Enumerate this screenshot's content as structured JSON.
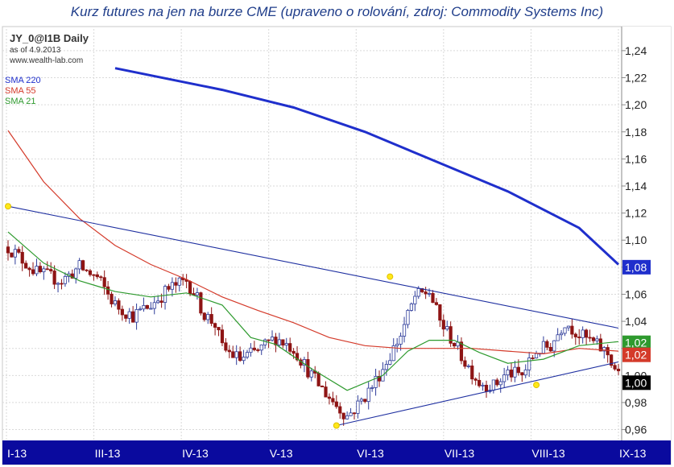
{
  "title": "Kurz futures na jen na burze CME (upraveno o rolování, zdroj: Commodity Systems Inc)",
  "header": {
    "symbol": "JY_0@I1B Daily",
    "as_of": "as of 4.9.2013",
    "website": "www.wealth-lab.com"
  },
  "chart_data": {
    "type": "candlestick",
    "title": "JY_0@I1B Daily",
    "y_ticks": [
      "1,24",
      "1,22",
      "1,20",
      "1,18",
      "1,16",
      "1,14",
      "1,12",
      "1,10",
      "1,08",
      "1,06",
      "1,04",
      "1,02",
      "1,00",
      "0,98",
      "0,96"
    ],
    "ylim": [
      0.952,
      1.256
    ],
    "x_ticks": [
      "I-13",
      "III-13",
      "IV-13",
      "V-13",
      "VI-13",
      "VII-13",
      "VIII-13",
      "IX-13"
    ],
    "n_bars": 172,
    "series": [
      {
        "name": "SMA 220",
        "color": "#1f2fcc",
        "last_value": "1,08",
        "points": [
          [
            30,
            1.227
          ],
          [
            60,
            1.211
          ],
          [
            80,
            1.198
          ],
          [
            100,
            1.18
          ],
          [
            120,
            1.158
          ],
          [
            140,
            1.136
          ],
          [
            160,
            1.109
          ],
          [
            171,
            1.082
          ]
        ]
      },
      {
        "name": "SMA 55",
        "color": "#d43a2a",
        "last_value": "1,02",
        "points": [
          [
            0,
            1.181
          ],
          [
            10,
            1.143
          ],
          [
            20,
            1.116
          ],
          [
            30,
            1.096
          ],
          [
            40,
            1.082
          ],
          [
            50,
            1.071
          ],
          [
            60,
            1.058
          ],
          [
            70,
            1.048
          ],
          [
            80,
            1.039
          ],
          [
            90,
            1.028
          ],
          [
            100,
            1.022
          ],
          [
            110,
            1.02
          ],
          [
            120,
            1.02
          ],
          [
            130,
            1.02
          ],
          [
            140,
            1.018
          ],
          [
            150,
            1.016
          ],
          [
            160,
            1.02
          ],
          [
            171,
            1.018
          ]
        ]
      },
      {
        "name": "SMA 21",
        "color": "#2e9a2e",
        "last_value": "1,02",
        "points": [
          [
            0,
            1.106
          ],
          [
            10,
            1.083
          ],
          [
            20,
            1.07
          ],
          [
            30,
            1.062
          ],
          [
            40,
            1.058
          ],
          [
            50,
            1.061
          ],
          [
            60,
            1.052
          ],
          [
            68,
            1.028
          ],
          [
            75,
            1.023
          ],
          [
            85,
            1.005
          ],
          [
            95,
            0.989
          ],
          [
            105,
            1.0
          ],
          [
            112,
            1.018
          ],
          [
            118,
            1.026
          ],
          [
            125,
            1.026
          ],
          [
            132,
            1.017
          ],
          [
            140,
            1.009
          ],
          [
            150,
            1.012
          ],
          [
            160,
            1.022
          ],
          [
            171,
            1.025
          ]
        ]
      }
    ],
    "close_path": [
      [
        0,
        1.095
      ],
      [
        8,
        1.076
      ],
      [
        15,
        1.07
      ],
      [
        20,
        1.08
      ],
      [
        25,
        1.072
      ],
      [
        30,
        1.052
      ],
      [
        35,
        1.044
      ],
      [
        40,
        1.052
      ],
      [
        45,
        1.064
      ],
      [
        50,
        1.07
      ],
      [
        52,
        1.062
      ],
      [
        55,
        1.045
      ],
      [
        58,
        1.038
      ],
      [
        60,
        1.02
      ],
      [
        65,
        1.012
      ],
      [
        70,
        1.018
      ],
      [
        75,
        1.028
      ],
      [
        80,
        1.02
      ],
      [
        85,
        1.0
      ],
      [
        88,
        0.99
      ],
      [
        92,
        0.978
      ],
      [
        95,
        0.97
      ],
      [
        98,
        0.978
      ],
      [
        102,
        0.992
      ],
      [
        106,
        1.01
      ],
      [
        110,
        1.03
      ],
      [
        114,
        1.058
      ],
      [
        118,
        1.062
      ],
      [
        121,
        1.04
      ],
      [
        125,
        1.024
      ],
      [
        128,
        1.01
      ],
      [
        132,
        0.995
      ],
      [
        136,
        0.992
      ],
      [
        140,
        1.002
      ],
      [
        144,
        1.0
      ],
      [
        148,
        1.018
      ],
      [
        152,
        1.022
      ],
      [
        156,
        1.04
      ],
      [
        160,
        1.03
      ],
      [
        164,
        1.024
      ],
      [
        168,
        1.016
      ],
      [
        171,
        1.0
      ]
    ],
    "last_close": "1,00",
    "trendlines": [
      {
        "from": [
          0,
          1.125
        ],
        "to": [
          171,
          1.035
        ]
      },
      {
        "from": [
          92,
          0.963
        ],
        "to": [
          171,
          1.01
        ]
      }
    ],
    "pivot_points": [
      [
        0,
        1.125
      ],
      [
        107,
        1.073
      ],
      [
        92,
        0.963
      ],
      [
        148,
        0.993
      ]
    ],
    "grid": true,
    "legend_position": "top-left"
  }
}
